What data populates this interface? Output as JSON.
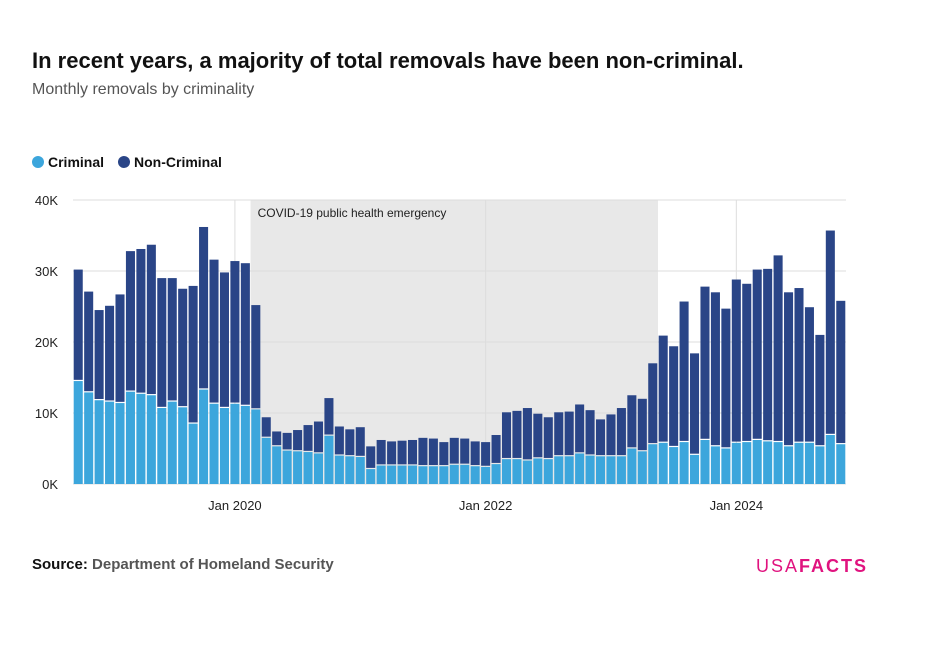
{
  "header": {
    "title": "In recent years, a majority of total removals have been non-criminal.",
    "subtitle": "Monthly removals by criminality"
  },
  "legend": {
    "criminal_label": "Criminal",
    "noncriminal_label": "Non-Criminal"
  },
  "footer": {
    "source_label": "Source:",
    "source_value": "Department of Homeland Security",
    "brand_usa": "USA",
    "brand_facts": "FACTS"
  },
  "colors": {
    "criminal": "#3ca6dc",
    "noncriminal": "#2a4587",
    "shade": "#e8e8e8",
    "grid": "#dddddd"
  },
  "chart_data": {
    "type": "bar",
    "stacked": true,
    "x_start": "2018-10",
    "x_interval": "month",
    "x_ticks": [
      {
        "date": "2020-01",
        "label": "Jan 2020"
      },
      {
        "date": "2022-01",
        "label": "Jan 2022"
      },
      {
        "date": "2024-01",
        "label": "Jan 2024"
      }
    ],
    "y_ticks": [
      {
        "value": 0,
        "label": "0K"
      },
      {
        "value": 10000,
        "label": "10K"
      },
      {
        "value": 20000,
        "label": "20K"
      },
      {
        "value": 30000,
        "label": "30K"
      },
      {
        "value": 40000,
        "label": "40K"
      }
    ],
    "ylim": [
      0,
      40000
    ],
    "annotation": {
      "label": "COVID-19 public health emergency",
      "start": "2020-03",
      "end": "2023-05"
    },
    "series": [
      {
        "name": "Criminal",
        "values": [
          14500,
          12900,
          11800,
          11600,
          11400,
          13000,
          12700,
          12500,
          10700,
          11600,
          10800,
          8500,
          13300,
          11300,
          10700,
          11300,
          11000,
          10500,
          6500,
          5300,
          4700,
          4600,
          4500,
          4300,
          6800,
          4000,
          3900,
          3800,
          2100,
          2600,
          2600,
          2600,
          2600,
          2500,
          2500,
          2500,
          2700,
          2700,
          2500,
          2400,
          2800,
          3500,
          3500,
          3300,
          3600,
          3500,
          3900,
          3900,
          4300,
          4000,
          3900,
          3900,
          3900,
          5000,
          4600,
          5600,
          5800,
          5200,
          5900,
          4100,
          6200,
          5300,
          5000,
          5800,
          5900,
          6200,
          6000,
          5900,
          5300,
          5800,
          5800,
          5300,
          6900,
          5600
        ]
      },
      {
        "name": "Non-Criminal",
        "values": [
          15700,
          14200,
          12700,
          13500,
          15300,
          19800,
          20400,
          21200,
          18300,
          17400,
          16700,
          19400,
          22900,
          20300,
          19100,
          20100,
          20100,
          14700,
          2900,
          2100,
          2500,
          3000,
          3800,
          4500,
          5300,
          4100,
          3800,
          4200,
          3200,
          3600,
          3400,
          3500,
          3600,
          4000,
          3900,
          3400,
          3800,
          3700,
          3500,
          3500,
          4100,
          6600,
          6800,
          7400,
          6300,
          5900,
          6200,
          6300,
          6900,
          6400,
          5200,
          5900,
          6800,
          7500,
          7400,
          11400,
          15100,
          14200,
          19800,
          14300,
          21600,
          21700,
          19700,
          23000,
          22300,
          24000,
          24300,
          26300,
          21700,
          21800,
          19100,
          15700,
          28800,
          20200
        ]
      }
    ]
  }
}
